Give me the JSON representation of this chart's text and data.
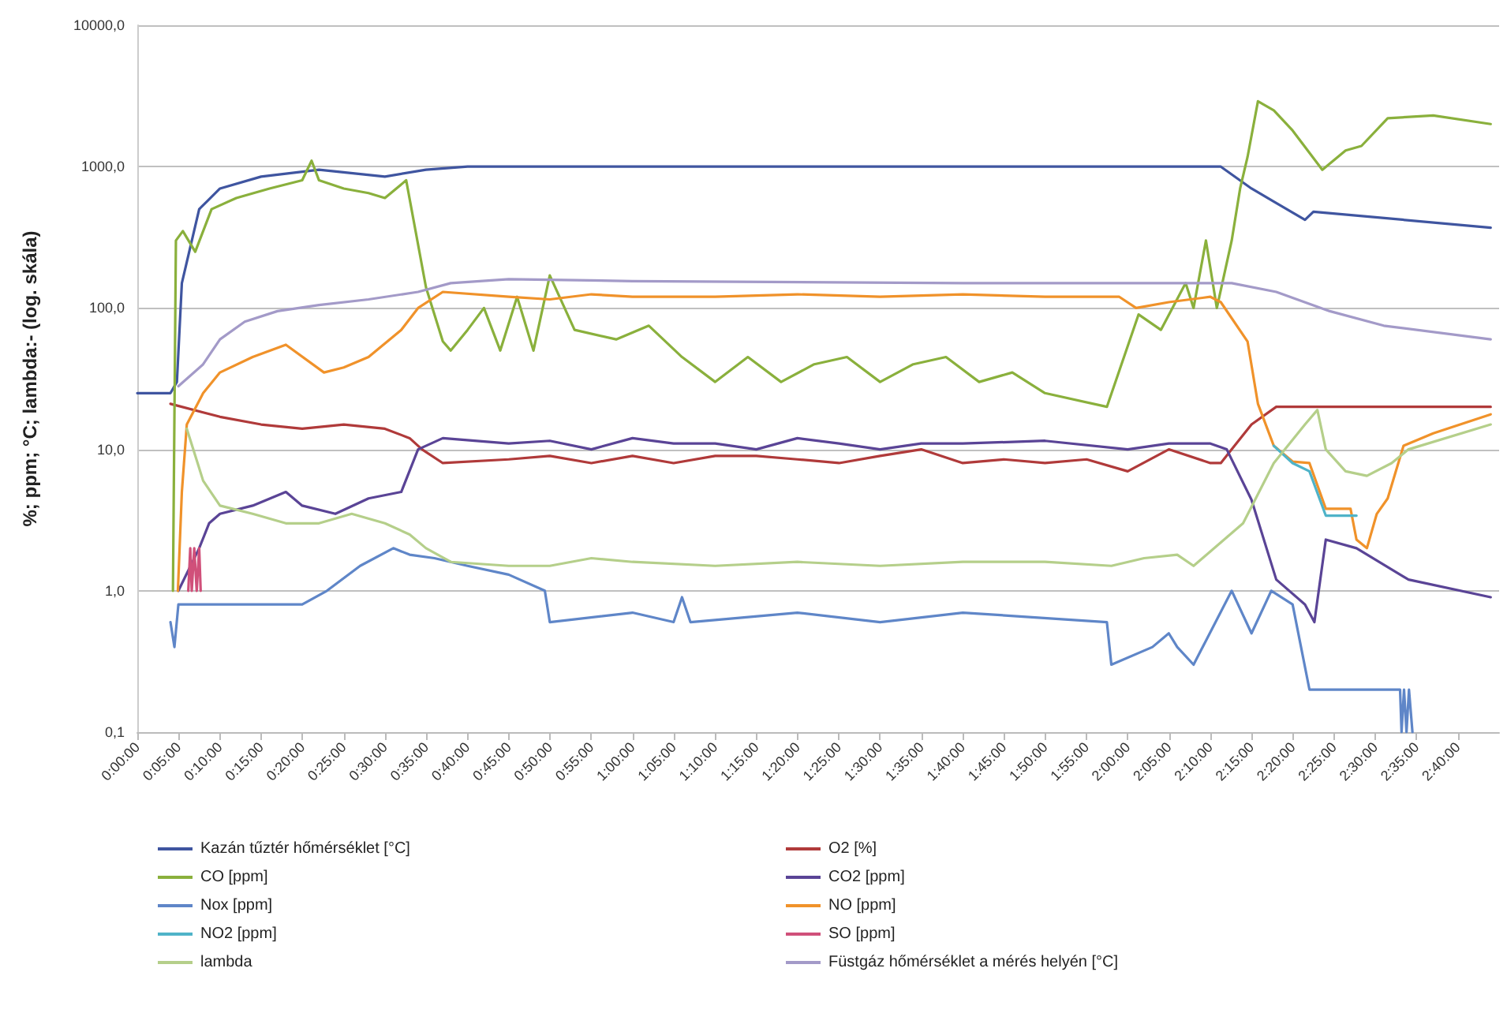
{
  "chart_data": {
    "type": "line",
    "ylabel": "%; ppm; °C; lambda:- (log. skála)",
    "log": "y",
    "grid": "y",
    "legend": "bottom",
    "marker": "none",
    "line_style": "solid",
    "xlim": [
      0,
      2.75
    ],
    "ylim": [
      0.1,
      10000
    ],
    "yticks": [
      {
        "value": 0.1,
        "label": "0,1"
      },
      {
        "value": 1,
        "label": "1,0"
      },
      {
        "value": 10,
        "label": "10,0"
      },
      {
        "value": 100,
        "label": "100,0"
      },
      {
        "value": 1000,
        "label": "1000,0"
      },
      {
        "value": 10000,
        "label": "10000,0"
      }
    ],
    "xticks": [
      {
        "value": 0,
        "label": "0:00:00"
      },
      {
        "value": 0.0833333,
        "label": "0:05:00"
      },
      {
        "value": 0.1666667,
        "label": "0:10:00"
      },
      {
        "value": 0.25,
        "label": "0:15:00"
      },
      {
        "value": 0.3333333,
        "label": "0:20:00"
      },
      {
        "value": 0.4166667,
        "label": "0:25:00"
      },
      {
        "value": 0.5,
        "label": "0:30:00"
      },
      {
        "value": 0.5833333,
        "label": "0:35:00"
      },
      {
        "value": 0.6666667,
        "label": "0:40:00"
      },
      {
        "value": 0.75,
        "label": "0:45:00"
      },
      {
        "value": 0.8333333,
        "label": "0:50:00"
      },
      {
        "value": 0.9166667,
        "label": "0:55:00"
      },
      {
        "value": 1,
        "label": "1:00:00"
      },
      {
        "value": 1.0833333,
        "label": "1:05:00"
      },
      {
        "value": 1.1666667,
        "label": "1:10:00"
      },
      {
        "value": 1.25,
        "label": "1:15:00"
      },
      {
        "value": 1.3333333,
        "label": "1:20:00"
      },
      {
        "value": 1.4166667,
        "label": "1:25:00"
      },
      {
        "value": 1.5,
        "label": "1:30:00"
      },
      {
        "value": 1.5833333,
        "label": "1:35:00"
      },
      {
        "value": 1.6666667,
        "label": "1:40:00"
      },
      {
        "value": 1.75,
        "label": "1:45:00"
      },
      {
        "value": 1.8333333,
        "label": "1:50:00"
      },
      {
        "value": 1.9166667,
        "label": "1:55:00"
      },
      {
        "value": 2,
        "label": "2:00:00"
      },
      {
        "value": 2.0833333,
        "label": "2:05:00"
      },
      {
        "value": 2.1666667,
        "label": "2:10:00"
      },
      {
        "value": 2.25,
        "label": "2:15:00"
      },
      {
        "value": 2.3333333,
        "label": "2:20:00"
      },
      {
        "value": 2.4166667,
        "label": "2:25:00"
      },
      {
        "value": 2.5,
        "label": "2:30:00"
      },
      {
        "value": 2.5833333,
        "label": "2:35:00"
      },
      {
        "value": 2.6666667,
        "label": "2:40:00"
      }
    ],
    "series": [
      {
        "name": "Kazán tűztér hőmérséklet [°C]",
        "color": "#3f55a0",
        "x": [
          0,
          0.067,
          0.08,
          0.09,
          0.125,
          0.167,
          0.25,
          0.367,
          0.5,
          0.583,
          0.667,
          1,
          1.5,
          2,
          2.188,
          2.25,
          2.358,
          2.375,
          2.733
        ],
        "values": [
          25,
          25,
          30,
          150,
          500,
          700,
          850,
          950,
          850,
          950,
          1000,
          1000,
          1000,
          1000,
          1000,
          700,
          420,
          480,
          370
        ]
      },
      {
        "name": "O2 [%]",
        "color": "#b03a3a",
        "x": [
          0.067,
          0.167,
          0.25,
          0.333,
          0.417,
          0.5,
          0.55,
          0.575,
          0.617,
          0.75,
          0.833,
          0.917,
          1,
          1.083,
          1.167,
          1.25,
          1.333,
          1.417,
          1.5,
          1.583,
          1.667,
          1.75,
          1.833,
          1.917,
          2,
          2.083,
          2.167,
          2.188,
          2.21,
          2.25,
          2.3,
          2.5,
          2.733
        ],
        "values": [
          21,
          17,
          15,
          14,
          15,
          14,
          12,
          10,
          8,
          8.5,
          9,
          8,
          9,
          8,
          9,
          9,
          8.5,
          8,
          9,
          10,
          8,
          8.5,
          8,
          8.5,
          7,
          10,
          8,
          8,
          10,
          15,
          20,
          20,
          20
        ]
      },
      {
        "name": "CO [ppm]",
        "color": "#8ab03c",
        "x": [
          0.072,
          0.078,
          0.092,
          0.117,
          0.15,
          0.2,
          0.267,
          0.333,
          0.352,
          0.367,
          0.417,
          0.467,
          0.5,
          0.543,
          0.583,
          0.617,
          0.633,
          0.667,
          0.7,
          0.733,
          0.767,
          0.8,
          0.833,
          0.883,
          0.967,
          1.033,
          1.1,
          1.167,
          1.233,
          1.3,
          1.367,
          1.433,
          1.5,
          1.567,
          1.633,
          1.7,
          1.767,
          1.833,
          1.958,
          2.022,
          2.067,
          2.117,
          2.133,
          2.158,
          2.18,
          2.21,
          2.227,
          2.242,
          2.263,
          2.295,
          2.333,
          2.393,
          2.44,
          2.472,
          2.525,
          2.617,
          2.733
        ],
        "values": [
          1,
          300,
          350,
          250,
          500,
          600,
          700,
          800,
          1100,
          800,
          700,
          650,
          600,
          800,
          140,
          58,
          50,
          70,
          100,
          50,
          120,
          50,
          170,
          70,
          60,
          75,
          45,
          30,
          45,
          30,
          40,
          45,
          30,
          40,
          45,
          30,
          35,
          25,
          20,
          90,
          70,
          150,
          100,
          300,
          100,
          300,
          700,
          1170,
          2900,
          2500,
          1800,
          950,
          1300,
          1400,
          2200,
          2300,
          2000
        ]
      },
      {
        "name": "CO2 [ppm]",
        "color": "#5a4496",
        "x": [
          0.083,
          0.125,
          0.145,
          0.167,
          0.233,
          0.3,
          0.333,
          0.4,
          0.467,
          0.533,
          0.567,
          0.617,
          0.75,
          0.833,
          0.917,
          1,
          1.083,
          1.167,
          1.25,
          1.333,
          1.417,
          1.5,
          1.583,
          1.667,
          1.833,
          2,
          2.083,
          2.167,
          2.2,
          2.25,
          2.3,
          2.358,
          2.377,
          2.4,
          2.462,
          2.567,
          2.733
        ],
        "values": [
          1,
          2,
          3,
          3.5,
          4,
          5,
          4,
          3.5,
          4.5,
          5,
          10,
          12,
          11,
          11.5,
          10,
          12,
          11,
          11,
          10,
          12,
          11,
          10,
          11,
          11,
          11.5,
          10,
          11,
          11,
          10,
          4.4,
          1.2,
          0.8,
          0.6,
          2.3,
          2,
          1.2,
          0.9
        ]
      },
      {
        "name": "Nox [ppm]",
        "color": "#5f86c8",
        "x": [
          0.067,
          0.075,
          0.083,
          0.333,
          0.383,
          0.45,
          0.517,
          0.55,
          0.6,
          0.667,
          0.75,
          0.823,
          0.833,
          1,
          1.083,
          1.1,
          1.117,
          1.333,
          1.5,
          1.667,
          1.958,
          1.967,
          2.05,
          2.083,
          2.1,
          2.133,
          2.21,
          2.25,
          2.29,
          2.333,
          2.35,
          2.367,
          2.55,
          2.553,
          2.558,
          2.563,
          2.568,
          2.575
        ],
        "values": [
          0.6,
          0.4,
          0.8,
          0.8,
          1,
          1.5,
          2,
          1.8,
          1.7,
          1.5,
          1.3,
          1,
          0.6,
          0.7,
          0.6,
          0.9,
          0.6,
          0.7,
          0.6,
          0.7,
          0.6,
          0.3,
          0.4,
          0.5,
          0.4,
          0.3,
          1,
          0.5,
          1,
          0.8,
          0.4,
          0.2,
          0.2,
          0.1,
          0.2,
          0.1,
          0.2,
          0.1
        ]
      },
      {
        "name": "NO [ppm]",
        "color": "#f0922a",
        "x": [
          0.082,
          0.09,
          0.1,
          0.133,
          0.167,
          0.233,
          0.3,
          0.377,
          0.417,
          0.467,
          0.533,
          0.567,
          0.617,
          0.75,
          0.833,
          0.917,
          1,
          1.167,
          1.333,
          1.5,
          1.667,
          1.833,
          1.983,
          2.017,
          2.083,
          2.167,
          2.188,
          2.242,
          2.263,
          2.295,
          2.333,
          2.367,
          2.4,
          2.45,
          2.462,
          2.483,
          2.503,
          2.525,
          2.557,
          2.617,
          2.733
        ],
        "values": [
          1,
          5,
          15,
          25,
          35,
          45,
          55,
          35,
          38,
          45,
          70,
          100,
          130,
          120,
          115,
          125,
          120,
          120,
          125,
          120,
          125,
          120,
          120,
          100,
          110,
          120,
          110,
          58,
          21,
          10.6,
          8.2,
          8,
          3.8,
          3.8,
          2.3,
          2,
          3.5,
          4.5,
          10.6,
          13,
          17.7
        ]
      },
      {
        "name": "NO2 [ppm]",
        "color": "#4fb3c8",
        "x": [
          2.295,
          2.333,
          2.367,
          2.4,
          2.45,
          2.462
        ],
        "values": [
          10.6,
          8,
          7,
          3.4,
          3.4,
          3.4
        ]
      },
      {
        "name": "SO [ppm]",
        "color": "#d0507a",
        "x": [
          0.103,
          0.107,
          0.11,
          0.115,
          0.12,
          0.125,
          0.128
        ],
        "values": [
          1,
          2,
          1,
          2,
          1,
          2,
          1
        ]
      },
      {
        "name": "lambda",
        "color": "#b5cf8a",
        "x": [
          0.1,
          0.133,
          0.167,
          0.233,
          0.3,
          0.367,
          0.433,
          0.5,
          0.55,
          0.583,
          0.633,
          0.75,
          0.833,
          0.917,
          1,
          1.167,
          1.333,
          1.5,
          1.667,
          1.833,
          1.967,
          2.033,
          2.1,
          2.133,
          2.233,
          2.295,
          2.358,
          2.383,
          2.4,
          2.44,
          2.483,
          2.533,
          2.567,
          2.733
        ],
        "values": [
          14,
          6,
          4,
          3.5,
          3,
          3,
          3.5,
          3,
          2.5,
          2,
          1.6,
          1.5,
          1.5,
          1.7,
          1.6,
          1.5,
          1.6,
          1.5,
          1.6,
          1.6,
          1.5,
          1.7,
          1.8,
          1.5,
          3,
          8,
          15,
          19,
          10,
          7,
          6.5,
          8,
          10,
          15
        ]
      },
      {
        "name": "Füstgáz hőmérséklet a mérés helyén [°C]",
        "color": "#a39ac8",
        "x": [
          0.083,
          0.133,
          0.167,
          0.217,
          0.283,
          0.367,
          0.467,
          0.567,
          0.633,
          0.75,
          1,
          1.667,
          2.167,
          2.21,
          2.3,
          2.408,
          2.517,
          2.733
        ],
        "values": [
          28,
          40,
          60,
          80,
          95,
          105,
          115,
          130,
          150,
          160,
          155,
          150,
          150,
          150,
          130,
          95,
          75,
          60
        ]
      }
    ]
  }
}
